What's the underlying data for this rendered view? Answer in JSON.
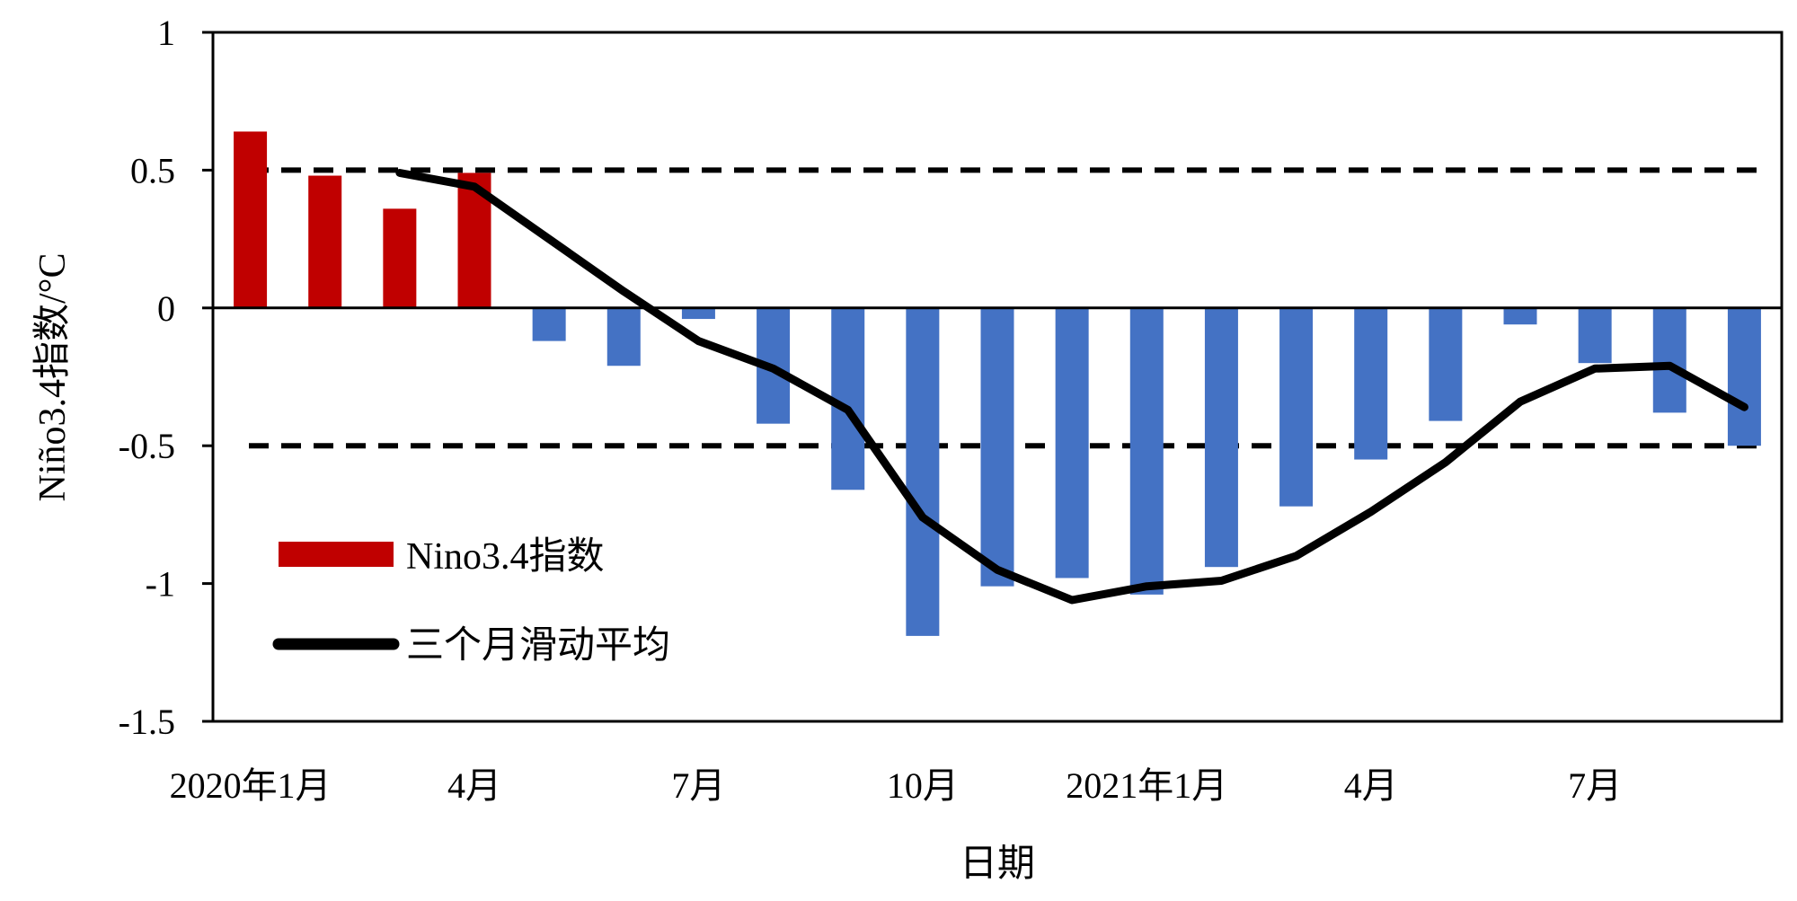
{
  "chart_data": {
    "type": "bar",
    "xlabel": "日期",
    "ylabel": "Niño3.4指数/°C",
    "ylim": [
      -1.5,
      1
    ],
    "yticks": [
      "1",
      "0.5",
      "0",
      "-0.5",
      "-1",
      "-1.5"
    ],
    "x_tick_labels": [
      {
        "month_index": 0,
        "label": "2020年1月"
      },
      {
        "month_index": 3,
        "label": "4月"
      },
      {
        "month_index": 6,
        "label": "7月"
      },
      {
        "month_index": 9,
        "label": "10月"
      },
      {
        "month_index": 12,
        "label": "2021年1月"
      },
      {
        "month_index": 15,
        "label": "4月"
      },
      {
        "month_index": 18,
        "label": "7月"
      }
    ],
    "months": [
      "2020-01",
      "2020-02",
      "2020-03",
      "2020-04",
      "2020-05",
      "2020-06",
      "2020-07",
      "2020-08",
      "2020-09",
      "2020-10",
      "2020-11",
      "2020-12",
      "2021-01",
      "2021-02",
      "2021-03",
      "2021-04",
      "2021-05",
      "2021-06",
      "2021-07",
      "2021-08",
      "2021-09"
    ],
    "series": [
      {
        "name": "Nino3.4指数",
        "kind": "bar",
        "values": [
          0.64,
          0.48,
          0.36,
          0.49,
          -0.12,
          -0.21,
          -0.04,
          -0.42,
          -0.66,
          -1.19,
          -1.01,
          -0.98,
          -1.04,
          -0.94,
          -0.72,
          -0.55,
          -0.41,
          -0.06,
          -0.2,
          -0.38,
          -0.5
        ],
        "positive_color": "#c00000",
        "negative_color": "#4472c4"
      },
      {
        "name": "三个月滑动平均",
        "kind": "line",
        "values": [
          null,
          null,
          0.49,
          0.44,
          0.25,
          0.06,
          -0.12,
          -0.22,
          -0.37,
          -0.76,
          -0.95,
          -1.06,
          -1.01,
          -0.99,
          -0.9,
          -0.74,
          -0.56,
          -0.34,
          -0.22,
          -0.21,
          -0.36
        ],
        "color": "#000000"
      }
    ],
    "reference_lines": [
      0.5,
      -0.5
    ],
    "legend_position": "bottom-left"
  }
}
